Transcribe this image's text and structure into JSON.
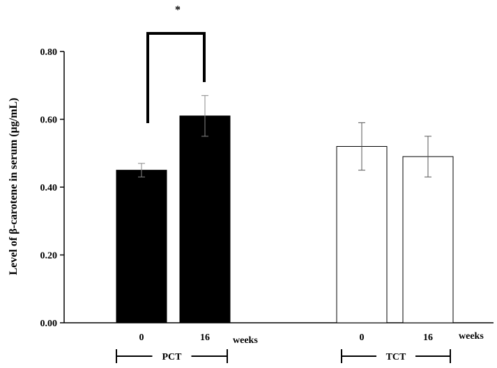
{
  "chart_data": {
    "type": "bar",
    "ylabel": "Level of β-carotene in serum (μg/mL)",
    "ylim": [
      0,
      0.8
    ],
    "yticks": [
      "0.00",
      "0.20",
      "0.40",
      "0.60",
      "0.80"
    ],
    "unit_label": "weeks",
    "groups": [
      {
        "name": "PCT",
        "fill": "#000000",
        "bars": [
          {
            "category": "0",
            "value": 0.45,
            "error": 0.02
          },
          {
            "category": "16",
            "value": 0.61,
            "error": 0.06
          }
        ]
      },
      {
        "name": "TCT",
        "fill": "#ffffff",
        "bars": [
          {
            "category": "0",
            "value": 0.52,
            "error": 0.07
          },
          {
            "category": "16",
            "value": 0.49,
            "error": 0.06
          }
        ]
      }
    ],
    "significance": {
      "marker": "*",
      "group": "PCT"
    }
  }
}
